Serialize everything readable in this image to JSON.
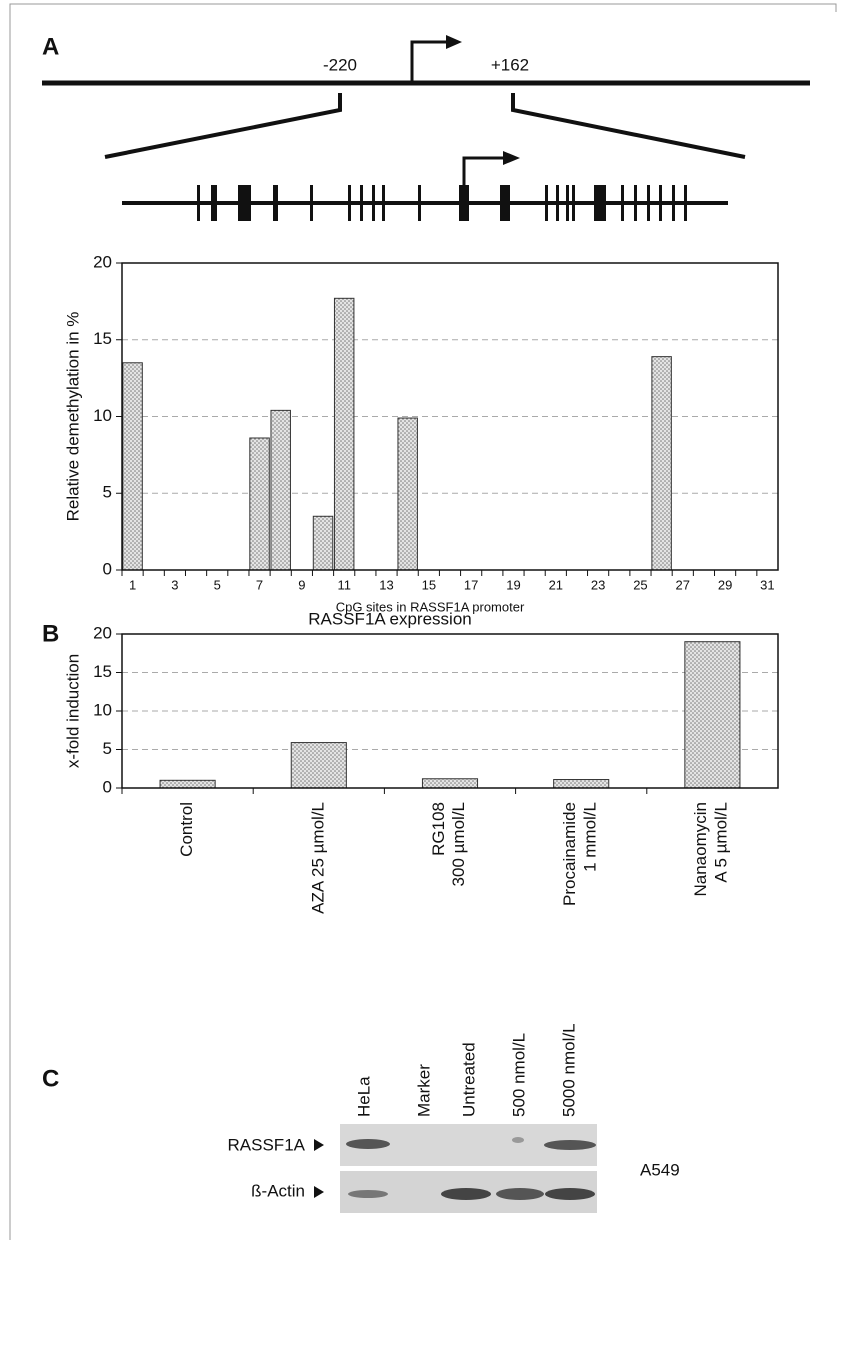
{
  "panels": [
    "A",
    "B",
    "C"
  ],
  "diagram": {
    "left_label": "-220",
    "right_label": "+162"
  },
  "blot": {
    "lanes": [
      "HeLa",
      "Marker",
      "Untreated",
      "500 nmol/L",
      "5000 nmol/L"
    ],
    "rows": [
      "RASSF1A",
      "ß-Actin"
    ],
    "cell_line": "A549"
  },
  "chart_data": [
    {
      "type": "bar",
      "x_label": "CpG sites in RASSF1A promoter",
      "y_label": "Relative demethylation in %",
      "categories": [
        1,
        null,
        3,
        null,
        5,
        null,
        7,
        null,
        9,
        null,
        11,
        null,
        13,
        null,
        15,
        null,
        17,
        null,
        19,
        null,
        21,
        null,
        23,
        null,
        25,
        null,
        27,
        null,
        29,
        null,
        31
      ],
      "values": [
        13.5,
        0,
        0,
        0,
        0,
        0,
        8.6,
        10.4,
        0,
        3.5,
        17.7,
        0,
        0,
        9.9,
        0,
        0,
        0,
        0,
        0,
        0,
        0,
        0,
        0,
        0,
        0,
        13.9,
        0,
        0,
        0,
        0,
        0
      ],
      "ylim": [
        0,
        20
      ],
      "yticks": [
        0,
        5,
        10,
        15,
        20
      ],
      "grid": true,
      "color": "#d9d9d9"
    },
    {
      "type": "bar",
      "title": "RASSF1A expression",
      "y_label": "x-fold induction",
      "categories": [
        "Control",
        "AZA 25 µmol/L",
        "RG108\n300 µmol/L",
        "Procainamide\n1 mmol/L",
        "Nanaomycin\nA 5 µmol/L"
      ],
      "values": [
        1,
        5.9,
        1.2,
        1.1,
        19
      ],
      "ylim": [
        0,
        20
      ],
      "yticks": [
        0,
        5,
        10,
        15,
        20
      ],
      "grid": true,
      "color": "#d9d9d9"
    }
  ]
}
